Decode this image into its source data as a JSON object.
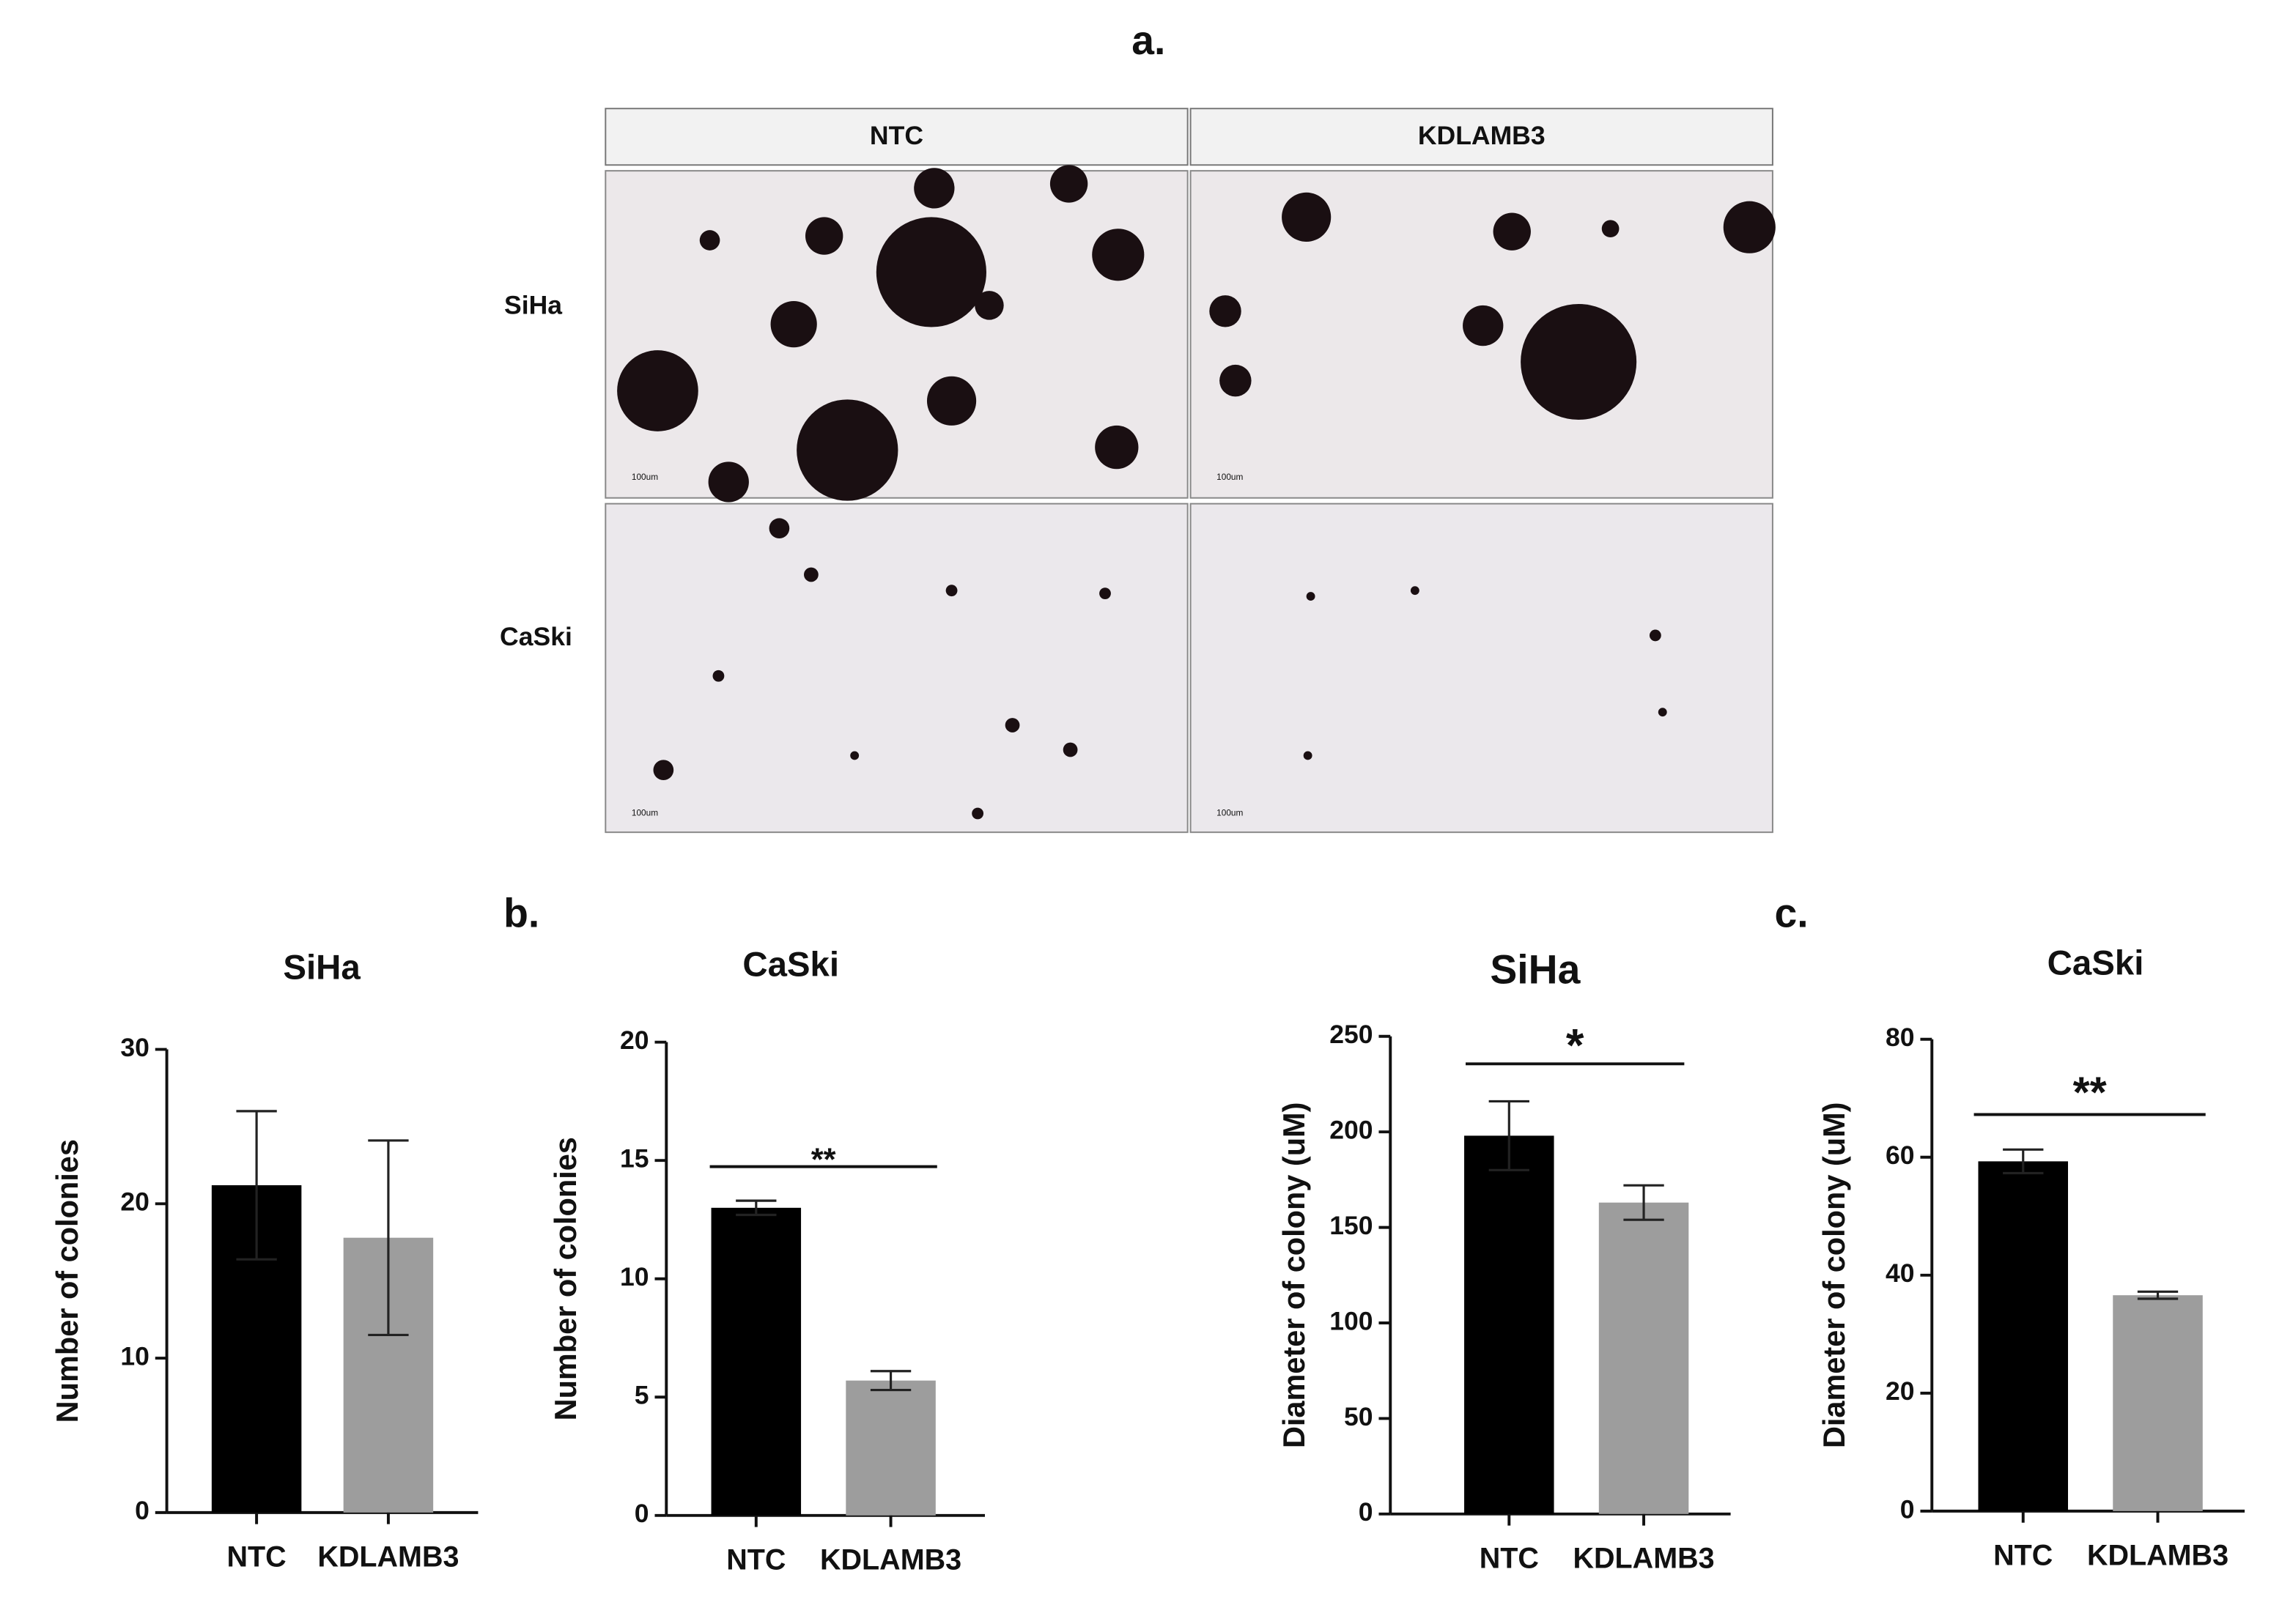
{
  "panel_labels": [
    "a.",
    "b.",
    "c."
  ],
  "micrographs": {
    "columns": [
      "NTC",
      "KDLAMB3"
    ],
    "rows": [
      "SiHa",
      "CaSki"
    ],
    "scale_bar": "100um"
  },
  "chart_data": [
    {
      "type": "bar",
      "title": "SiHa",
      "ylabel": "Number of colonies",
      "categories": [
        "NTC",
        "KDLAMB3"
      ],
      "values": [
        21.2,
        17.8
      ],
      "errors": [
        4.8,
        6.3
      ],
      "colors": [
        "#000000",
        "#9d9d9d"
      ],
      "ylim": [
        0,
        30
      ],
      "yticks": [
        0,
        10,
        20,
        30
      ]
    },
    {
      "type": "bar",
      "title": "CaSki",
      "ylabel": "Number of colonies",
      "categories": [
        "NTC",
        "KDLAMB3"
      ],
      "values": [
        13,
        5.7
      ],
      "errors": [
        0.3,
        0.4
      ],
      "colors": [
        "#000000",
        "#9d9d9d"
      ],
      "ylim": [
        0,
        20
      ],
      "yticks": [
        0,
        5,
        10,
        15,
        20
      ],
      "significance": "**"
    },
    {
      "type": "bar",
      "title": "SiHa",
      "ylabel": "Diameter of colony (uM)",
      "categories": [
        "NTC",
        "KDLAMB3"
      ],
      "values": [
        198,
        163
      ],
      "errors": [
        18,
        9
      ],
      "colors": [
        "#000000",
        "#9d9d9d"
      ],
      "ylim": [
        0,
        250
      ],
      "yticks": [
        0,
        50,
        100,
        150,
        200,
        250
      ],
      "significance": "*"
    },
    {
      "type": "bar",
      "title": "CaSki",
      "ylabel": "Diameter of colony (uM)",
      "categories": [
        "NTC",
        "KDLAMB3"
      ],
      "values": [
        59.3,
        36.6
      ],
      "errors": [
        2,
        0.6
      ],
      "colors": [
        "#000000",
        "#9d9d9d"
      ],
      "ylim": [
        0,
        80
      ],
      "yticks": [
        0,
        20,
        40,
        60,
        80
      ],
      "significance": "**"
    }
  ]
}
